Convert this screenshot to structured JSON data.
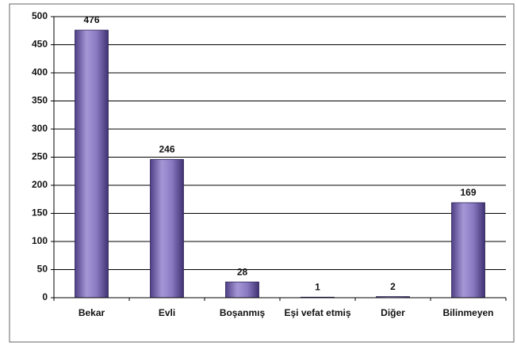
{
  "chart_data": {
    "type": "bar",
    "categories": [
      "Bekar",
      "Evli",
      "Boşanmış",
      "Eşi vefat etmiş",
      "Diğer",
      "Bilinmeyen"
    ],
    "values": [
      476,
      246,
      28,
      1,
      2,
      169
    ],
    "color": "#7a68b4",
    "ylim": [
      0,
      500
    ],
    "yticks": [
      0,
      50,
      100,
      150,
      200,
      250,
      300,
      350,
      400,
      450,
      500
    ],
    "grid": true,
    "data_labels": true
  }
}
